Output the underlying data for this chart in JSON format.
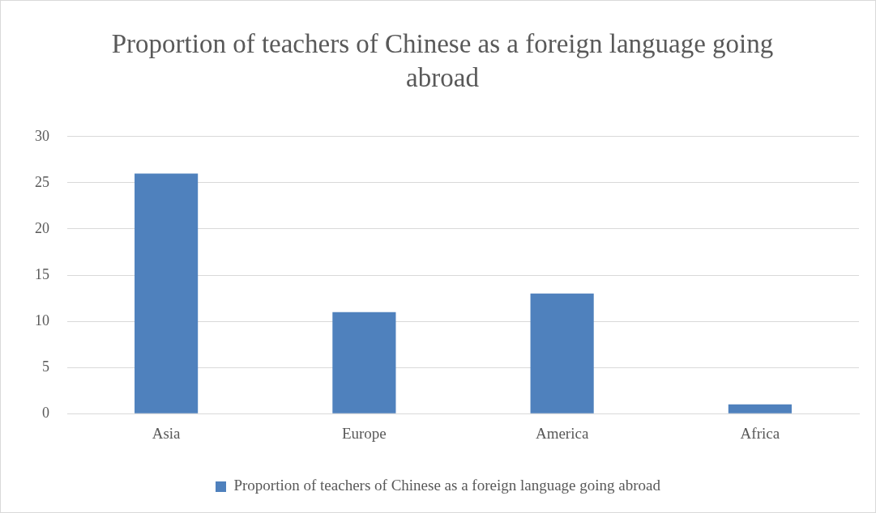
{
  "chart_data": {
    "type": "bar",
    "title": "Proportion of teachers of Chinese as a foreign language going abroad",
    "categories": [
      "Asia",
      "Europe",
      "America",
      "Africa"
    ],
    "series": [
      {
        "name": "Proportion of teachers of Chinese as a foreign language going abroad",
        "color": "#4f81bd",
        "values": [
          26,
          11,
          13,
          1
        ]
      }
    ],
    "ylim": [
      0,
      30
    ],
    "yticks": [
      0,
      5,
      10,
      15,
      20,
      25,
      30
    ],
    "grid": "y",
    "legend": "bottom"
  }
}
